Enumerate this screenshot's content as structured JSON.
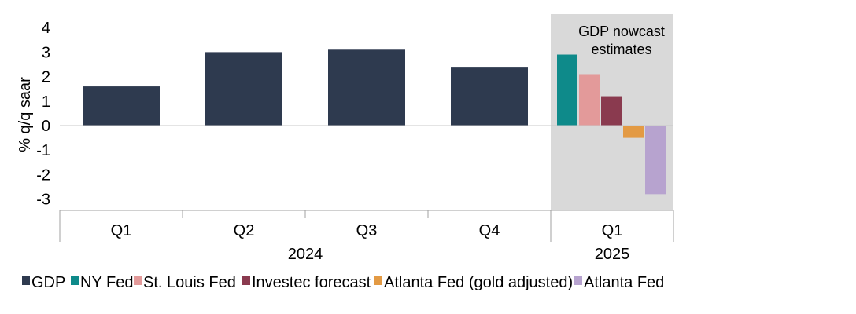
{
  "chart_data": {
    "type": "bar",
    "ylabel": "% q/q saar",
    "ylim": [
      -3.5,
      4.5
    ],
    "yticks": [
      "4",
      "3",
      "2",
      "1",
      "0",
      "-1",
      "-2",
      "-3"
    ],
    "ytick_values": [
      4,
      3,
      2,
      1,
      0,
      -1,
      -2,
      -3
    ],
    "grid": false,
    "legend_position": "bottom",
    "annotation": {
      "line1": "GDP nowcast",
      "line2": "estimates",
      "color": "#d9d9d9"
    },
    "categories": [
      "Q1",
      "Q2",
      "Q3",
      "Q4",
      "Q1"
    ],
    "years": [
      {
        "label": "2024",
        "span": [
          0,
          3
        ]
      },
      {
        "label": "2025",
        "span": [
          4,
          4
        ]
      }
    ],
    "series": [
      {
        "name": "GDP",
        "color": "#2e3a4f",
        "values": [
          1.6,
          3.0,
          3.1,
          2.4,
          null
        ]
      },
      {
        "name": "NY Fed",
        "color": "#0e8a8a",
        "values": [
          null,
          null,
          null,
          null,
          2.9
        ]
      },
      {
        "name": "St. Louis Fed",
        "color": "#e39a9a",
        "values": [
          null,
          null,
          null,
          null,
          2.1
        ]
      },
      {
        "name": "Investec forecast",
        "color": "#8a3a4f",
        "values": [
          null,
          null,
          null,
          null,
          1.2
        ]
      },
      {
        "name": "Atlanta Fed (gold adjusted)",
        "color": "#e39a44",
        "values": [
          null,
          null,
          null,
          null,
          -0.5
        ]
      },
      {
        "name": "Atlanta Fed",
        "color": "#b7a3cf",
        "values": [
          null,
          null,
          null,
          null,
          -2.8
        ]
      }
    ]
  }
}
